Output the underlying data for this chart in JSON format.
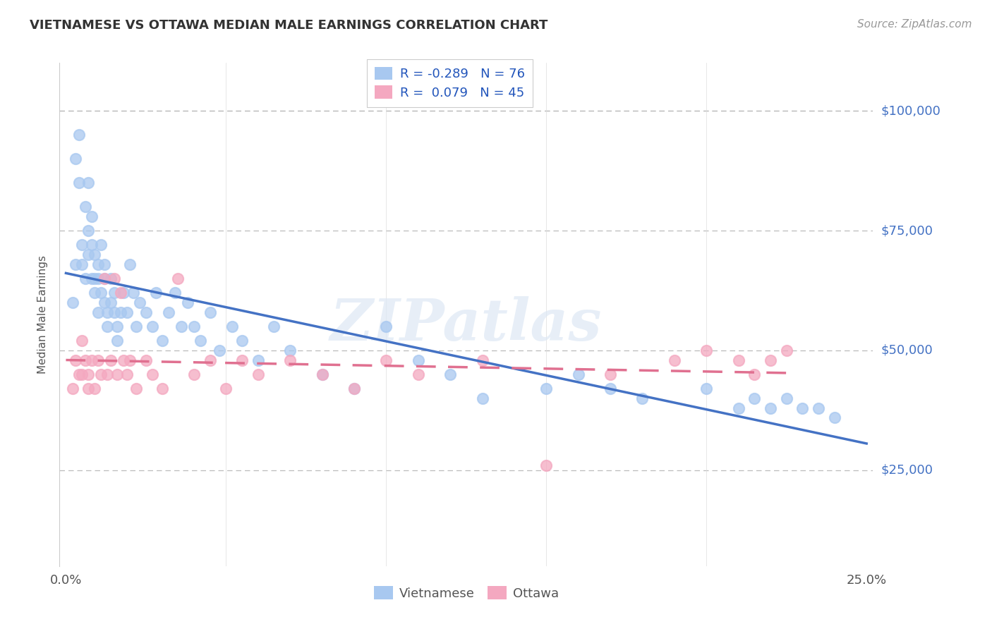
{
  "title": "VIETNAMESE VS OTTAWA MEDIAN MALE EARNINGS CORRELATION CHART",
  "source": "Source: ZipAtlas.com",
  "ylabel": "Median Male Earnings",
  "xlim": [
    -0.002,
    0.252
  ],
  "ylim": [
    5000,
    110000
  ],
  "yticks": [
    25000,
    50000,
    75000,
    100000
  ],
  "ytick_labels": [
    "$25,000",
    "$50,000",
    "$75,000",
    "$100,000"
  ],
  "background_color": "#ffffff",
  "grid_color": "#cccccc",
  "title_color": "#222222",
  "legend_label1": "Vietnamese",
  "legend_label2": "Ottawa",
  "r1": "-0.289",
  "n1": "76",
  "r2": "0.079",
  "n2": "45",
  "color_vietnamese": "#a8c8f0",
  "color_ottawa": "#f4a8c0",
  "color_line_vietnamese": "#4472c4",
  "color_line_ottawa": "#e07090",
  "color_yticks": "#4472c4",
  "color_source": "#999999",
  "color_title": "#333333",
  "color_ylabel": "#555555",
  "viet_x": [
    0.002,
    0.003,
    0.003,
    0.004,
    0.004,
    0.005,
    0.005,
    0.006,
    0.006,
    0.007,
    0.007,
    0.007,
    0.008,
    0.008,
    0.008,
    0.009,
    0.009,
    0.009,
    0.01,
    0.01,
    0.01,
    0.011,
    0.011,
    0.012,
    0.012,
    0.012,
    0.013,
    0.013,
    0.014,
    0.014,
    0.015,
    0.015,
    0.016,
    0.016,
    0.017,
    0.018,
    0.019,
    0.02,
    0.021,
    0.022,
    0.023,
    0.025,
    0.027,
    0.028,
    0.03,
    0.032,
    0.034,
    0.036,
    0.038,
    0.04,
    0.042,
    0.045,
    0.048,
    0.052,
    0.055,
    0.06,
    0.065,
    0.07,
    0.08,
    0.09,
    0.1,
    0.11,
    0.12,
    0.13,
    0.15,
    0.16,
    0.17,
    0.18,
    0.2,
    0.21,
    0.215,
    0.22,
    0.225,
    0.23,
    0.235,
    0.24
  ],
  "viet_y": [
    60000,
    90000,
    68000,
    95000,
    85000,
    68000,
    72000,
    65000,
    80000,
    85000,
    70000,
    75000,
    78000,
    65000,
    72000,
    65000,
    70000,
    62000,
    68000,
    58000,
    65000,
    72000,
    62000,
    68000,
    60000,
    65000,
    58000,
    55000,
    65000,
    60000,
    58000,
    62000,
    55000,
    52000,
    58000,
    62000,
    58000,
    68000,
    62000,
    55000,
    60000,
    58000,
    55000,
    62000,
    52000,
    58000,
    62000,
    55000,
    60000,
    55000,
    52000,
    58000,
    50000,
    55000,
    52000,
    48000,
    55000,
    50000,
    45000,
    42000,
    55000,
    48000,
    45000,
    40000,
    42000,
    45000,
    42000,
    40000,
    42000,
    38000,
    40000,
    38000,
    40000,
    38000,
    38000,
    36000
  ],
  "ottawa_x": [
    0.002,
    0.003,
    0.004,
    0.005,
    0.005,
    0.006,
    0.007,
    0.007,
    0.008,
    0.009,
    0.01,
    0.011,
    0.012,
    0.013,
    0.014,
    0.015,
    0.016,
    0.017,
    0.018,
    0.019,
    0.02,
    0.022,
    0.025,
    0.027,
    0.03,
    0.035,
    0.04,
    0.045,
    0.05,
    0.055,
    0.06,
    0.07,
    0.08,
    0.09,
    0.1,
    0.11,
    0.13,
    0.15,
    0.17,
    0.19,
    0.2,
    0.21,
    0.215,
    0.22,
    0.225
  ],
  "ottawa_y": [
    42000,
    48000,
    45000,
    52000,
    45000,
    48000,
    45000,
    42000,
    48000,
    42000,
    48000,
    45000,
    65000,
    45000,
    48000,
    65000,
    45000,
    62000,
    48000,
    45000,
    48000,
    42000,
    48000,
    45000,
    42000,
    65000,
    45000,
    48000,
    42000,
    48000,
    45000,
    48000,
    45000,
    42000,
    48000,
    45000,
    48000,
    26000,
    45000,
    48000,
    50000,
    48000,
    45000,
    48000,
    50000
  ],
  "viet_line_x": [
    0.0,
    0.25
  ],
  "viet_line_y": [
    60000,
    35000
  ],
  "ottawa_line_x": [
    0.0,
    0.225
  ],
  "ottawa_line_y": [
    44000,
    50000
  ]
}
